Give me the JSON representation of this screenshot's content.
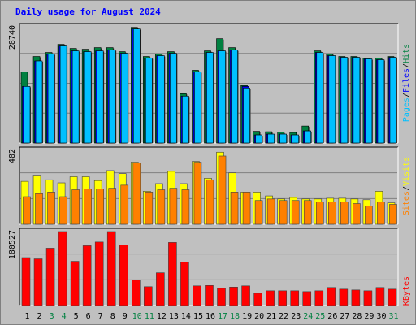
{
  "title": "Daily usage for August 2024",
  "colors": {
    "hits": "#008040",
    "files": "#0000ff",
    "pages": "#00c0ff",
    "visits": "#ffff00",
    "sites": "#ff8000",
    "kbytes": "#ff0000",
    "weekend_label": "#008040",
    "weekday_label": "#000000"
  },
  "chart_data": [
    {
      "type": "bar",
      "name_panel": "top",
      "ytick": "28740",
      "ylim": [
        0,
        28740
      ],
      "legend": [
        "Pages",
        "/",
        "Files",
        "/",
        "Hits"
      ],
      "categories": [
        "1",
        "2",
        "3",
        "4",
        "5",
        "6",
        "7",
        "8",
        "9",
        "10",
        "11",
        "12",
        "13",
        "14",
        "15",
        "16",
        "17",
        "18",
        "19",
        "20",
        "21",
        "22",
        "23",
        "24",
        "25",
        "26",
        "27",
        "28",
        "29",
        "30",
        "31"
      ],
      "series": [
        {
          "name": "Hits",
          "values": [
            17600,
            21400,
            22400,
            24400,
            23400,
            23200,
            23600,
            23600,
            22600,
            28600,
            21400,
            22000,
            22600,
            12200,
            18000,
            22800,
            25800,
            23600,
            14200,
            2900,
            2800,
            2700,
            2600,
            4200,
            22800,
            22000,
            21400,
            21400,
            21000,
            21000,
            21400
          ]
        },
        {
          "name": "Files",
          "values": [
            14000,
            20300,
            22000,
            24000,
            22800,
            22600,
            22800,
            23000,
            22200,
            28200,
            21000,
            21600,
            22200,
            11600,
            17600,
            22400,
            22800,
            23000,
            14000,
            2000,
            2200,
            2200,
            2000,
            3000,
            22400,
            21600,
            21200,
            21200,
            20800,
            20600,
            21200
          ]
        },
        {
          "name": "Pages",
          "values": [
            14000,
            20300,
            22000,
            24000,
            22800,
            22600,
            22800,
            23000,
            22200,
            28200,
            21000,
            21600,
            22200,
            11600,
            17600,
            22400,
            22800,
            23000,
            13600,
            2000,
            2200,
            2200,
            2000,
            3000,
            22400,
            21600,
            21200,
            21200,
            20800,
            20600,
            21200
          ]
        }
      ]
    },
    {
      "type": "bar",
      "name_panel": "middle",
      "ytick": "482",
      "ylim": [
        0,
        482
      ],
      "legend": [
        "Sites",
        "/",
        "Visits"
      ],
      "categories": [
        "1",
        "2",
        "3",
        "4",
        "5",
        "6",
        "7",
        "8",
        "9",
        "10",
        "11",
        "12",
        "13",
        "14",
        "15",
        "16",
        "17",
        "18",
        "19",
        "20",
        "21",
        "22",
        "23",
        "24",
        "25",
        "26",
        "27",
        "28",
        "29",
        "30",
        "31"
      ],
      "series": [
        {
          "name": "Visits",
          "values": [
            280,
            320,
            290,
            270,
            310,
            310,
            285,
            350,
            330,
            405,
            215,
            265,
            345,
            265,
            410,
            300,
            470,
            335,
            210,
            210,
            185,
            165,
            175,
            165,
            165,
            170,
            170,
            165,
            160,
            215,
            140
          ]
        },
        {
          "name": "Sites",
          "values": [
            180,
            200,
            210,
            180,
            225,
            230,
            230,
            235,
            255,
            400,
            210,
            225,
            235,
            225,
            405,
            290,
            445,
            210,
            210,
            155,
            165,
            155,
            155,
            155,
            145,
            145,
            145,
            135,
            120,
            145,
            130
          ]
        }
      ]
    },
    {
      "type": "bar",
      "name_panel": "bottom",
      "ytick": "180527",
      "ylim": [
        0,
        180527
      ],
      "legend": [
        "KBytes"
      ],
      "categories": [
        "1",
        "2",
        "3",
        "4",
        "5",
        "6",
        "7",
        "8",
        "9",
        "10",
        "11",
        "12",
        "13",
        "14",
        "15",
        "16",
        "17",
        "18",
        "19",
        "20",
        "21",
        "22",
        "23",
        "24",
        "25",
        "26",
        "27",
        "28",
        "29",
        "30",
        "31"
      ],
      "series": [
        {
          "name": "KBytes",
          "values": [
            117000,
            114000,
            140000,
            180527,
            108000,
            146000,
            155000,
            180527,
            148000,
            62000,
            46000,
            80000,
            154000,
            106000,
            48000,
            49000,
            42000,
            45000,
            48000,
            30000,
            36000,
            36000,
            36000,
            34000,
            36000,
            44000,
            40000,
            38000,
            36000,
            44000,
            40000
          ]
        }
      ]
    }
  ],
  "x_labels": [
    "1",
    "2",
    "3",
    "4",
    "5",
    "6",
    "7",
    "8",
    "9",
    "10",
    "11",
    "12",
    "13",
    "14",
    "15",
    "16",
    "17",
    "18",
    "19",
    "20",
    "21",
    "22",
    "23",
    "24",
    "25",
    "26",
    "27",
    "28",
    "29",
    "30",
    "31"
  ],
  "weekend_days": [
    3,
    4,
    10,
    11,
    17,
    18,
    24,
    25,
    31
  ]
}
